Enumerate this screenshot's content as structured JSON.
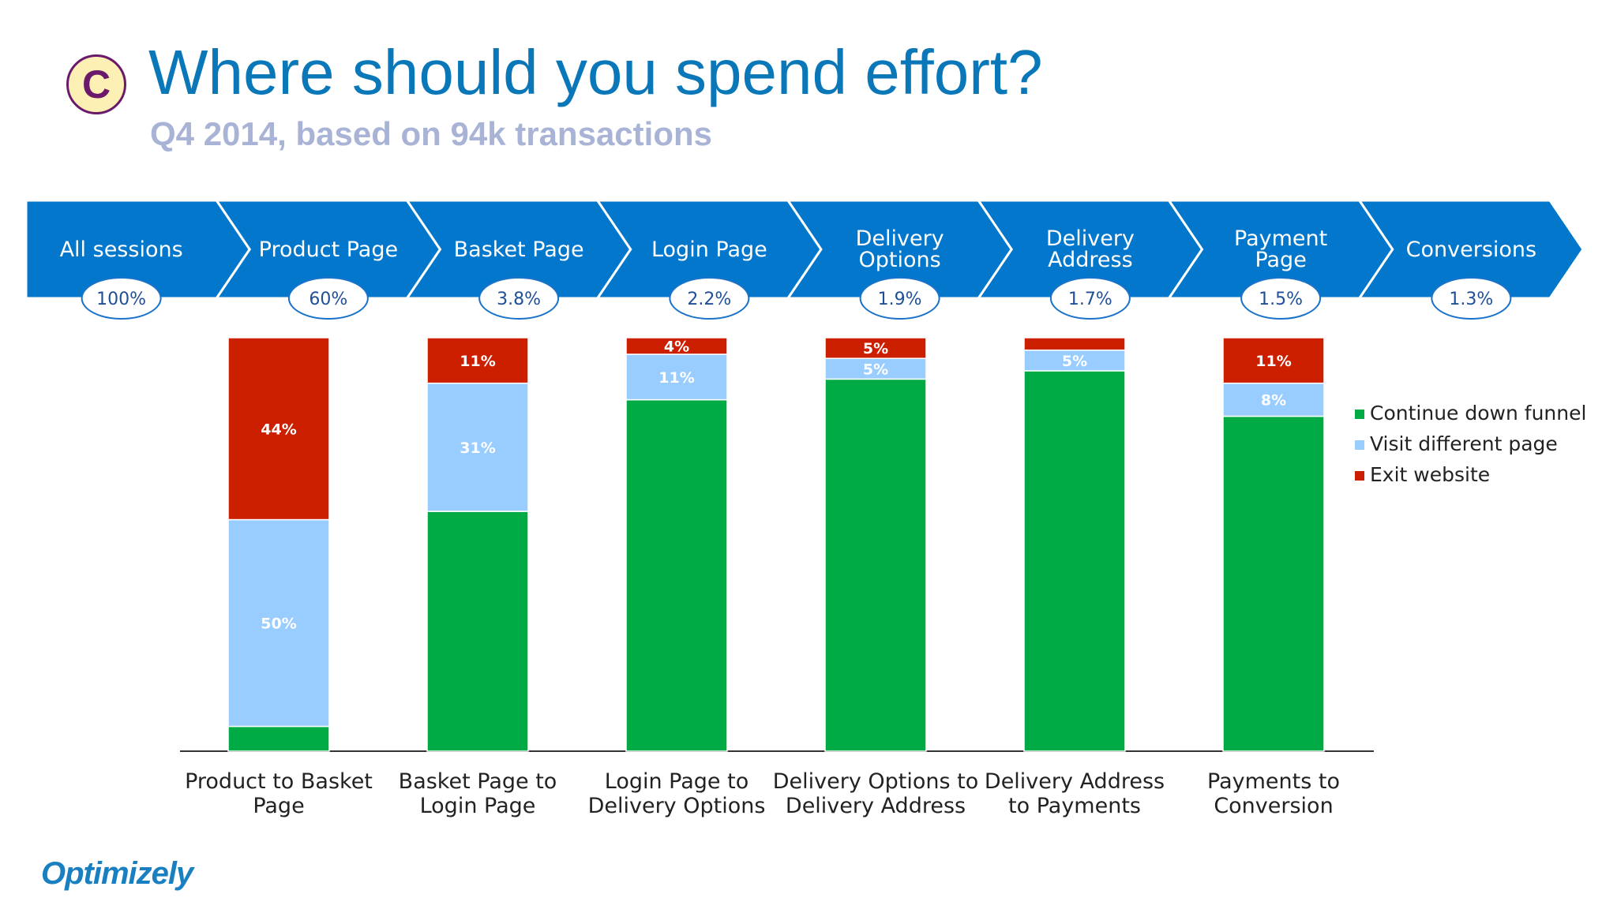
{
  "header": {
    "badge": "C",
    "title": "Where should you spend effort?",
    "subtitle": "Q4 2014, based on 94k transactions"
  },
  "logo": {
    "text": "Optimizely"
  },
  "funnel": {
    "stages": [
      {
        "lines": [
          "All sessions"
        ],
        "value": "100%"
      },
      {
        "lines": [
          "Product Page"
        ],
        "value": "60%"
      },
      {
        "lines": [
          "Basket Page"
        ],
        "value": "3.8%"
      },
      {
        "lines": [
          "Login Page"
        ],
        "value": "2.2%"
      },
      {
        "lines": [
          "Delivery",
          "Options"
        ],
        "value": "1.9%"
      },
      {
        "lines": [
          "Delivery",
          "Address"
        ],
        "value": "1.7%"
      },
      {
        "lines": [
          "Payment",
          "Page"
        ],
        "value": "1.5%"
      },
      {
        "lines": [
          "Conversions"
        ],
        "value": "1.3%"
      }
    ]
  },
  "colors": {
    "funnel": "#0277cc",
    "continue": "#00ab45",
    "visit": "#99ccff",
    "exit": "#cc1f00",
    "ellipse_stroke": "#1a73c9"
  },
  "chart_data": {
    "type": "bar",
    "stacked": true,
    "ylim": [
      0,
      100
    ],
    "categories": [
      [
        "Product to Basket",
        "Page"
      ],
      [
        "Basket Page to",
        "Login Page"
      ],
      [
        "Login Page to",
        "Delivery Options"
      ],
      [
        "Delivery Options to",
        "Delivery Address"
      ],
      [
        "Delivery Address",
        "to Payments"
      ],
      [
        "Payments to",
        "Conversion"
      ]
    ],
    "series": [
      {
        "name": "Continue down funnel",
        "color_key": "continue",
        "values": [
          6,
          58,
          85,
          90,
          92,
          81
        ],
        "labels": [
          "",
          "",
          "",
          "",
          "",
          ""
        ]
      },
      {
        "name": "Visit different page",
        "color_key": "visit",
        "values": [
          50,
          31,
          11,
          5,
          5,
          8
        ],
        "labels": [
          "50%",
          "31%",
          "11%",
          "5%",
          "5%",
          "8%"
        ]
      },
      {
        "name": "Exit website",
        "color_key": "exit",
        "values": [
          44,
          11,
          4,
          5,
          3,
          11
        ],
        "labels": [
          "44%",
          "11%",
          "4%",
          "5%",
          "",
          "11%"
        ]
      }
    ],
    "legend_position": "right"
  }
}
